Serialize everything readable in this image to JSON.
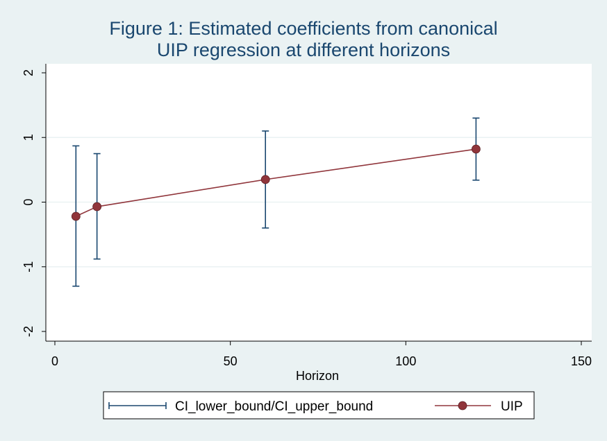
{
  "chart_data": {
    "type": "scatter",
    "title_lines": [
      "Figure 1: Estimated coefficients from canonical",
      "UIP regression at different horizons"
    ],
    "xlabel": "Horizon",
    "ylabel": "",
    "xlim": [
      0,
      150
    ],
    "ylim": [
      -2,
      2
    ],
    "x_ticks": [
      0,
      50,
      100,
      150
    ],
    "y_ticks": [
      -2,
      -1,
      0,
      1,
      2
    ],
    "grid": "horizontal",
    "legend_position": "bottom",
    "series": [
      {
        "name": "CI_lower_bound/CI_upper_bound",
        "kind": "errorbar",
        "color": "#1a476f",
        "x": [
          6,
          12,
          60,
          120
        ],
        "lower": [
          -1.3,
          -0.88,
          -0.4,
          0.34
        ],
        "upper": [
          0.87,
          0.75,
          1.1,
          1.3
        ]
      },
      {
        "name": "UIP",
        "kind": "connected",
        "color": "#90353b",
        "x": [
          6,
          12,
          60,
          120
        ],
        "y": [
          -0.22,
          -0.07,
          0.35,
          0.82
        ]
      }
    ]
  }
}
